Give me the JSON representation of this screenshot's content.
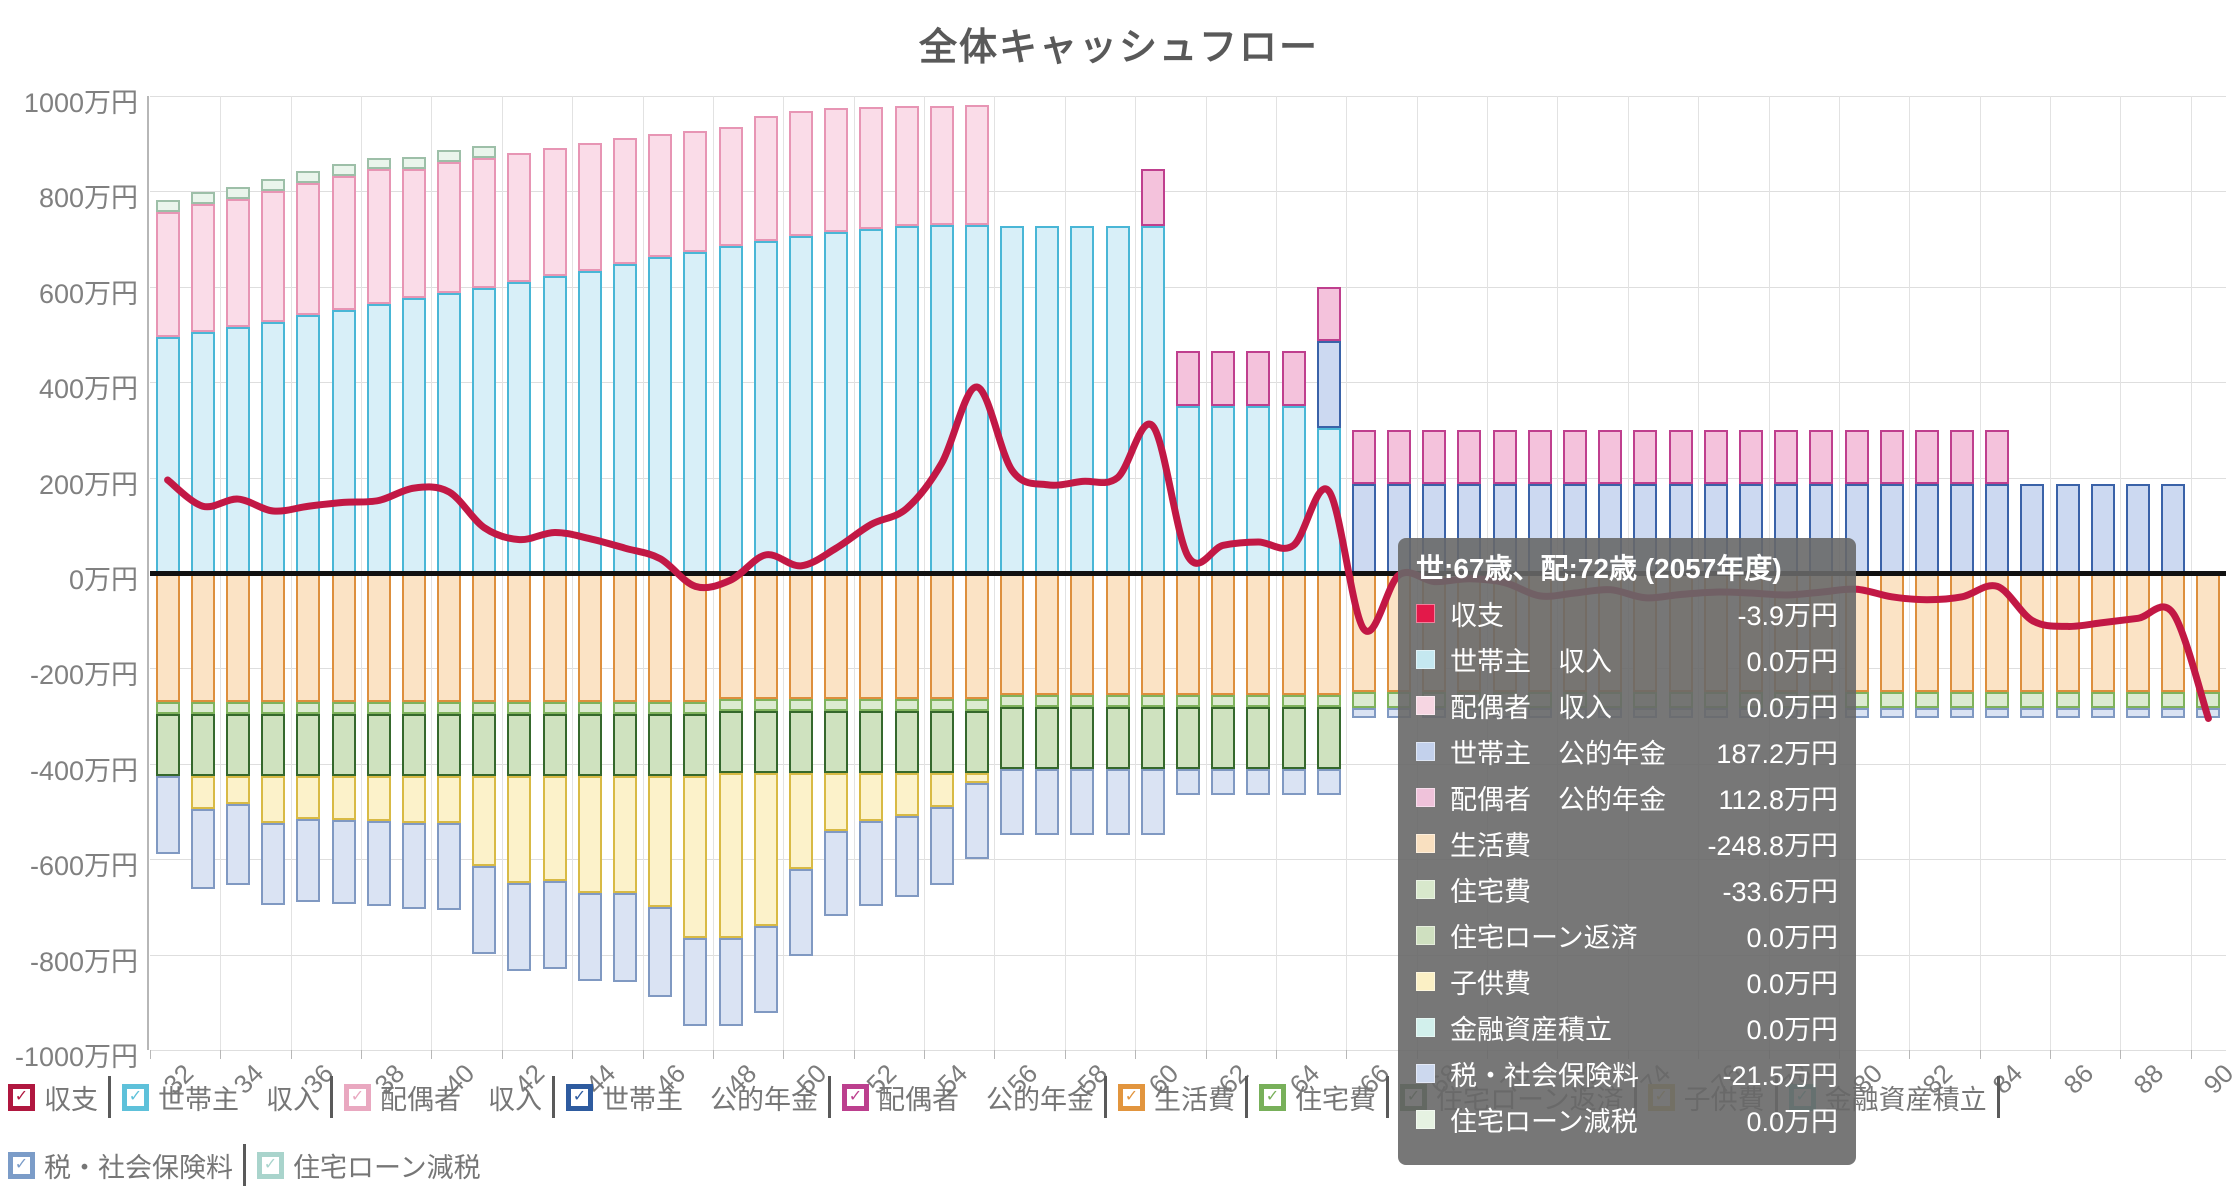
{
  "chart_data": {
    "type": "combo",
    "title": "全体キャッシュフロー",
    "y_axis": {
      "unit": "万円",
      "min": -1000,
      "max": 1000,
      "step": 200,
      "grid": true,
      "labels": [
        "1000万円",
        "800万円",
        "600万円",
        "400万円",
        "200万円",
        "0万円",
        "-200万円",
        "-400万円",
        "-600万円",
        "-800万円",
        "-1000万円"
      ]
    },
    "x_axis": {
      "age_min": 32,
      "age_max": 90,
      "tick_labels": [
        "32",
        "34",
        "36",
        "38",
        "40",
        "42",
        "44",
        "46",
        "48",
        "50",
        "52",
        "54",
        "56",
        "58",
        "60",
        "62",
        "64",
        "66",
        "68",
        "70",
        "72",
        "74",
        "76",
        "78",
        "80",
        "82",
        "84",
        "86",
        "88",
        "90"
      ]
    },
    "series": [
      {
        "key": "shushi",
        "label": "収支",
        "type": "line",
        "color": "#c21845",
        "values": [
          195,
          140,
          155,
          130,
          140,
          148,
          152,
          178,
          170,
          95,
          70,
          85,
          72,
          52,
          30,
          -28,
          -15,
          38,
          15,
          52,
          102,
          135,
          230,
          390,
          215,
          185,
          192,
          200,
          308,
          35,
          58,
          65,
          58,
          172,
          -118,
          -3.9,
          -18,
          -12,
          -20,
          -48,
          -42,
          -35,
          -52,
          -45,
          -40,
          -42,
          -46,
          -40,
          -34,
          -50,
          -56,
          -50,
          -28,
          -100,
          -112,
          -104,
          -95,
          -85,
          -305
        ]
      },
      {
        "key": "householder_income",
        "label": "世帯主　収入",
        "type": "bar",
        "stack": "positive",
        "fill": "#d8eff8",
        "stroke": "#49b6d6",
        "values": [
          495,
          505,
          515,
          527,
          540,
          552,
          563,
          576,
          588,
          598,
          610,
          622,
          634,
          648,
          662,
          674,
          686,
          696,
          706,
          714,
          722,
          728,
          730,
          730,
          728,
          728,
          728,
          728,
          728,
          350,
          350,
          350,
          350,
          305,
          0,
          0,
          0,
          0,
          0,
          0,
          0,
          0,
          0,
          0,
          0,
          0,
          0,
          0,
          0,
          0,
          0,
          0,
          0,
          0,
          0,
          0,
          0,
          0,
          0
        ]
      },
      {
        "key": "spouse_income",
        "label": "配偶者　収入",
        "type": "bar",
        "stack": "positive",
        "fill": "#fadce8",
        "stroke": "#e795b4",
        "values": [
          262,
          268,
          270,
          274,
          278,
          280,
          283,
          272,
          274,
          272,
          271,
          270,
          268,
          263,
          258,
          252,
          249,
          262,
          262,
          261,
          255,
          252,
          250,
          252,
          0,
          0,
          0,
          0,
          0,
          0,
          0,
          0,
          0,
          0,
          0,
          0,
          0,
          0,
          0,
          0,
          0,
          0,
          0,
          0,
          0,
          0,
          0,
          0,
          0,
          0,
          0,
          0,
          0,
          0,
          0,
          0,
          0,
          0,
          0
        ]
      },
      {
        "key": "householder_pension",
        "label": "世帯主　公的年金",
        "type": "bar",
        "stack": "positive",
        "fill": "#ccd9f1",
        "stroke": "#3a62a8",
        "values": [
          0,
          0,
          0,
          0,
          0,
          0,
          0,
          0,
          0,
          0,
          0,
          0,
          0,
          0,
          0,
          0,
          0,
          0,
          0,
          0,
          0,
          0,
          0,
          0,
          0,
          0,
          0,
          0,
          0,
          0,
          0,
          0,
          0,
          182,
          187.2,
          187.2,
          187.2,
          187.2,
          187.2,
          187.2,
          187.2,
          187.2,
          187.2,
          187.2,
          187.2,
          187.2,
          187.2,
          187.2,
          187.2,
          187.2,
          187.2,
          187.2,
          187.2,
          187.2,
          187.2,
          187.2,
          187.2,
          187.2,
          0
        ]
      },
      {
        "key": "spouse_pension",
        "label": "配偶者　公的年金",
        "type": "bar",
        "stack": "positive",
        "fill": "#f4c2dc",
        "stroke": "#bf3f8e",
        "values": [
          0,
          0,
          0,
          0,
          0,
          0,
          0,
          0,
          0,
          0,
          0,
          0,
          0,
          0,
          0,
          0,
          0,
          0,
          0,
          0,
          0,
          0,
          0,
          0,
          0,
          0,
          0,
          0,
          120,
          115,
          115,
          115,
          115,
          113,
          112.8,
          112.8,
          112.8,
          112.8,
          112.8,
          112.8,
          112.8,
          112.8,
          112.8,
          112.8,
          112.8,
          112.8,
          112.8,
          112.8,
          112.8,
          112.8,
          112.8,
          112.8,
          112.8,
          0,
          0,
          0,
          0,
          0,
          0
        ]
      },
      {
        "key": "loan_tax_credit",
        "label": "住宅ローン減税",
        "type": "bar",
        "stack": "positive",
        "fill": "#eaf5ec",
        "stroke": "#9dbfa8",
        "values": [
          25,
          25,
          25,
          25,
          25,
          25,
          25,
          25,
          25,
          25,
          0,
          0,
          0,
          0,
          0,
          0,
          0,
          0,
          0,
          0,
          0,
          0,
          0,
          0,
          0,
          0,
          0,
          0,
          0,
          0,
          0,
          0,
          0,
          0,
          0,
          0,
          0,
          0,
          0,
          0,
          0,
          0,
          0,
          0,
          0,
          0,
          0,
          0,
          0,
          0,
          0,
          0,
          0,
          0,
          0,
          0,
          0,
          0,
          0
        ]
      },
      {
        "key": "seikatsuhi",
        "label": "生活費",
        "type": "bar",
        "stack": "negative",
        "fill": "#fbe3c5",
        "stroke": "#dd8f3d",
        "values": [
          -270,
          -270,
          -270,
          -270,
          -270,
          -270,
          -270,
          -270,
          -270,
          -270,
          -270,
          -270,
          -270,
          -270,
          -270,
          -270,
          -265,
          -265,
          -265,
          -265,
          -265,
          -265,
          -265,
          -265,
          -255,
          -255,
          -255,
          -255,
          -255,
          -255,
          -255,
          -255,
          -255,
          -255,
          -248.8,
          -248.8,
          -248.8,
          -248.8,
          -248.8,
          -248.8,
          -248.8,
          -248.8,
          -248.8,
          -248.8,
          -248.8,
          -248.8,
          -248.8,
          -248.8,
          -248.8,
          -248.8,
          -248.8,
          -248.8,
          -248.8,
          -248.8,
          -248.8,
          -248.8,
          -248.8,
          -248.8,
          -248.8
        ]
      },
      {
        "key": "jutakuhi",
        "label": "住宅費",
        "type": "bar",
        "stack": "negative",
        "fill": "#dcebd1",
        "stroke": "#7fb25c",
        "values": [
          -25,
          -25,
          -25,
          -25,
          -25,
          -25,
          -25,
          -25,
          -25,
          -25,
          -25,
          -25,
          -25,
          -25,
          -25,
          -25,
          -25,
          -25,
          -25,
          -25,
          -25,
          -25,
          -25,
          -25,
          -25,
          -25,
          -25,
          -25,
          -25,
          -25,
          -25,
          -25,
          -25,
          -25,
          -33.6,
          -33.6,
          -33.6,
          -33.6,
          -33.6,
          -33.6,
          -33.6,
          -33.6,
          -33.6,
          -33.6,
          -33.6,
          -33.6,
          -33.6,
          -33.6,
          -33.6,
          -33.6,
          -33.6,
          -33.6,
          -33.6,
          -33.6,
          -33.6,
          -33.6,
          -33.6,
          -33.6,
          -33.6
        ]
      },
      {
        "key": "loan_repayment",
        "label": "住宅ローン返済",
        "type": "bar",
        "stack": "negative",
        "fill": "#cfe2bf",
        "stroke": "#35682c",
        "values": [
          -130,
          -130,
          -130,
          -130,
          -130,
          -130,
          -130,
          -130,
          -130,
          -130,
          -130,
          -130,
          -130,
          -130,
          -130,
          -130,
          -130,
          -130,
          -130,
          -130,
          -130,
          -130,
          -130,
          -130,
          -130,
          -130,
          -130,
          -130,
          -130,
          -130,
          -130,
          -130,
          -130,
          -130,
          0,
          0,
          0,
          0,
          0,
          0,
          0,
          0,
          0,
          0,
          0,
          0,
          0,
          0,
          0,
          0,
          0,
          0,
          0,
          0,
          0,
          0,
          0,
          0,
          0
        ]
      },
      {
        "key": "kodomohi",
        "label": "子供費",
        "type": "bar",
        "stack": "negative",
        "fill": "#fcf2ca",
        "stroke": "#d8ba45",
        "values": [
          0,
          -70,
          -60,
          -100,
          -90,
          -93,
          -95,
          -100,
          -100,
          -190,
          -225,
          -220,
          -245,
          -245,
          -275,
          -340,
          -345,
          -320,
          -200,
          -120,
          -100,
          -90,
          -70,
          -20,
          0,
          0,
          0,
          0,
          0,
          0,
          0,
          0,
          0,
          0,
          0,
          0,
          0,
          0,
          0,
          0,
          0,
          0,
          0,
          0,
          0,
          0,
          0,
          0,
          0,
          0,
          0,
          0,
          0,
          0,
          0,
          0,
          0,
          0,
          0
        ]
      },
      {
        "key": "tax_social",
        "label": "税・社会保険料",
        "type": "bar",
        "stack": "negative",
        "fill": "#dae3f3",
        "stroke": "#8099c2",
        "values": [
          -165,
          -168,
          -170,
          -172,
          -174,
          -176,
          -178,
          -180,
          -182,
          -183,
          -184,
          -185,
          -186,
          -187,
          -188,
          -185,
          -185,
          -183,
          -182,
          -180,
          -178,
          -170,
          -165,
          -160,
          -140,
          -140,
          -140,
          -140,
          -140,
          -55,
          -55,
          -55,
          -55,
          -55,
          -21.5,
          -21.5,
          -21.5,
          -21.5,
          -21.5,
          -21.5,
          -21.5,
          -21.5,
          -21.5,
          -21.5,
          -21.5,
          -21.5,
          -21.5,
          -21.5,
          -21.5,
          -21.5,
          -21.5,
          -21.5,
          -21.5,
          -21.5,
          -21.5,
          -21.5,
          -21.5,
          -21.5,
          -21.5
        ]
      },
      {
        "key": "kinyu_tsumitate",
        "label": "金融資産積立",
        "type": "bar",
        "stack": "negative",
        "fill": "#d2f0ec",
        "stroke": "#4fbdba",
        "values": [
          0,
          0,
          0,
          0,
          0,
          0,
          0,
          0,
          0,
          0,
          0,
          0,
          0,
          0,
          0,
          0,
          0,
          0,
          0,
          0,
          0,
          0,
          0,
          0,
          0,
          0,
          0,
          0,
          0,
          0,
          0,
          0,
          0,
          0,
          0,
          0,
          0,
          0,
          0,
          0,
          0,
          0,
          0,
          0,
          0,
          0,
          0,
          0,
          0,
          0,
          0,
          0,
          0,
          0,
          0,
          0,
          0,
          0,
          0
        ]
      }
    ]
  },
  "tooltip": {
    "header": "世:67歳、配:72歳 (2057年度)",
    "rows": [
      {
        "label": "収支",
        "value": "-3.9万円",
        "color": "#e3194a"
      },
      {
        "label": "世帯主　収入",
        "value": "0.0万円",
        "color": "#c5e8f0"
      },
      {
        "label": "配偶者　収入",
        "value": "0.0万円",
        "color": "#f6d6e2"
      },
      {
        "label": "世帯主　公的年金",
        "value": "187.2万円",
        "color": "#c3d1ec"
      },
      {
        "label": "配偶者　公的年金",
        "value": "112.8万円",
        "color": "#efc2da"
      },
      {
        "label": "生活費",
        "value": "-248.8万円",
        "color": "#f9e0c0"
      },
      {
        "label": "住宅費",
        "value": "-33.6万円",
        "color": "#d8e8cc"
      },
      {
        "label": "住宅ローン返済",
        "value": "0.0万円",
        "color": "#cfe0c0"
      },
      {
        "label": "子供費",
        "value": "0.0万円",
        "color": "#fbf0c5"
      },
      {
        "label": "金融資産積立",
        "value": "0.0万円",
        "color": "#d2f0ec"
      },
      {
        "label": "税・社会保険料",
        "value": "-21.5万円",
        "color": "#ccd8ee"
      },
      {
        "label": "住宅ローン減税",
        "value": "0.0万円",
        "color": "#e6f2e2"
      }
    ]
  },
  "legend": {
    "rows": [
      [
        {
          "label": "収支",
          "color": "#b0173f",
          "checked": true
        },
        {
          "label": "世帯主　収入",
          "color": "#5ec1da",
          "checked": true
        },
        {
          "label": "配偶者　収入",
          "color": "#e9a8c0",
          "checked": true
        },
        {
          "label": "世帯主　公的年金",
          "color": "#2e5b9f",
          "checked": true
        },
        {
          "label": "配偶者　公的年金",
          "color": "#bc3f8e",
          "checked": true
        },
        {
          "label": "生活費",
          "color": "#e2953e",
          "checked": true
        },
        {
          "label": "住宅費",
          "color": "#78b05a",
          "checked": true
        },
        {
          "label": "住宅ローン返済",
          "color": "#386c2e",
          "checked": true
        },
        {
          "label": "子供費",
          "color": "#d8bb49",
          "checked": true
        },
        {
          "label": "金融資産積立",
          "color": "#4fbdba",
          "checked": true
        }
      ],
      [
        {
          "label": "税・社会保険料",
          "color": "#7b9cc8",
          "checked": true
        },
        {
          "label": "住宅ローン減税",
          "color": "#a9d4cc",
          "checked": true
        }
      ]
    ],
    "check_glyph": "✓"
  }
}
